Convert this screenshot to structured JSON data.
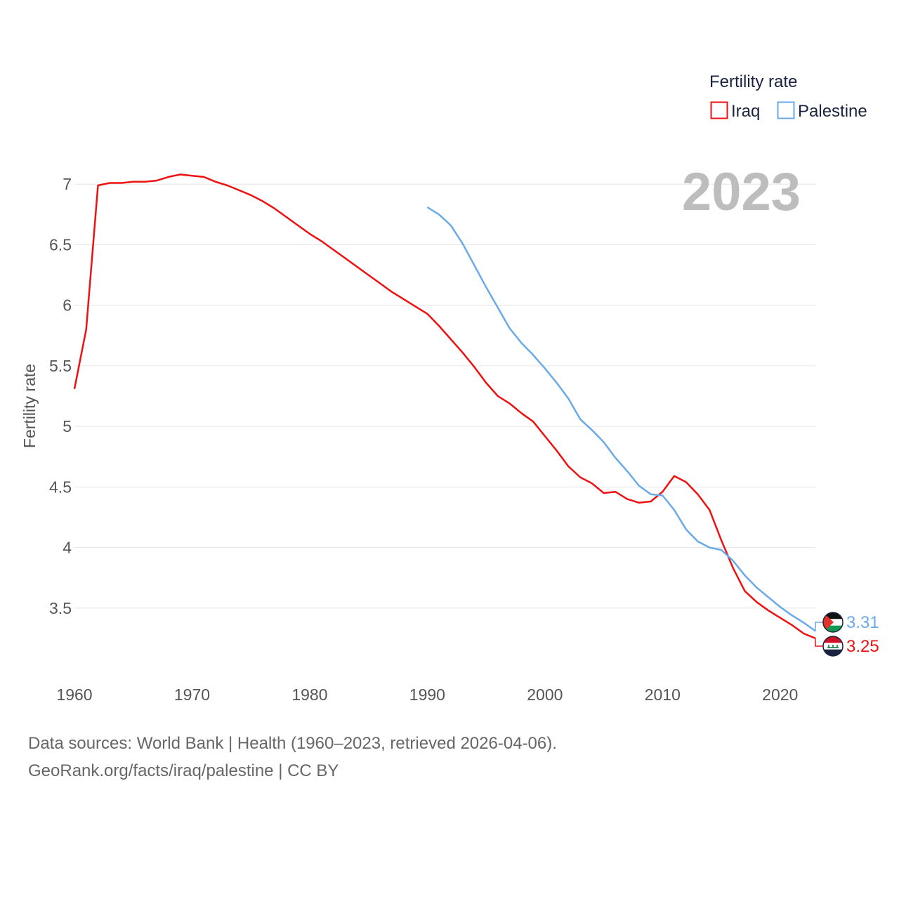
{
  "colors": {
    "iraq": "#ee1111",
    "palestine": "#6aaae8"
  },
  "footer": {
    "line1": "Data sources: World Bank | Health (1960–2023, retrieved 2026-04-06).",
    "line2": "GeoRank.org/facts/iraq/palestine | CC BY"
  },
  "chart_data": {
    "type": "line",
    "title": "",
    "ylabel": "Fertility rate",
    "xlabel": "",
    "year_label": "2023",
    "legend": {
      "title": "Fertility rate",
      "position": "top-right"
    },
    "xlim": [
      1960,
      2023
    ],
    "ylim": [
      3.0,
      7.1
    ],
    "x_ticks": [
      1960,
      1970,
      1980,
      1990,
      2000,
      2010,
      2020
    ],
    "y_ticks": [
      3.5,
      4,
      4.5,
      5,
      5.5,
      6,
      6.5,
      7
    ],
    "series": [
      {
        "key": "iraq",
        "name": "Iraq",
        "end_label": "3.25",
        "x": [
          1960,
          1961,
          1962,
          1963,
          1964,
          1965,
          1966,
          1967,
          1968,
          1969,
          1970,
          1971,
          1972,
          1973,
          1974,
          1975,
          1976,
          1977,
          1978,
          1979,
          1980,
          1981,
          1982,
          1983,
          1984,
          1985,
          1986,
          1987,
          1988,
          1989,
          1990,
          1991,
          1992,
          1993,
          1994,
          1995,
          1996,
          1997,
          1998,
          1999,
          2000,
          2001,
          2002,
          2003,
          2004,
          2005,
          2006,
          2007,
          2008,
          2009,
          2010,
          2011,
          2012,
          2013,
          2014,
          2015,
          2016,
          2017,
          2018,
          2019,
          2020,
          2021,
          2022,
          2023
        ],
        "values": [
          5.31,
          5.8,
          6.99,
          7.01,
          7.01,
          7.02,
          7.02,
          7.03,
          7.06,
          7.08,
          7.07,
          7.06,
          7.02,
          6.99,
          6.95,
          6.91,
          6.86,
          6.8,
          6.73,
          6.66,
          6.59,
          6.53,
          6.46,
          6.39,
          6.32,
          6.25,
          6.18,
          6.11,
          6.05,
          5.99,
          5.93,
          5.83,
          5.72,
          5.61,
          5.49,
          5.36,
          5.25,
          5.19,
          5.11,
          5.04,
          4.92,
          4.8,
          4.67,
          4.58,
          4.53,
          4.45,
          4.46,
          4.4,
          4.37,
          4.38,
          4.46,
          4.59,
          4.54,
          4.44,
          4.31,
          4.06,
          3.83,
          3.64,
          3.55,
          3.48,
          3.42,
          3.36,
          3.29,
          3.25
        ]
      },
      {
        "key": "palestine",
        "name": "Palestine",
        "end_label": "3.31",
        "x": [
          1990,
          1991,
          1992,
          1993,
          1994,
          1995,
          1996,
          1997,
          1998,
          1999,
          2000,
          2001,
          2002,
          2003,
          2004,
          2005,
          2006,
          2007,
          2008,
          2009,
          2010,
          2011,
          2012,
          2013,
          2014,
          2015,
          2016,
          2017,
          2018,
          2019,
          2020,
          2021,
          2022,
          2023
        ],
        "values": [
          6.81,
          6.75,
          6.66,
          6.51,
          6.33,
          6.15,
          5.98,
          5.81,
          5.69,
          5.59,
          5.48,
          5.36,
          5.23,
          5.06,
          4.97,
          4.87,
          4.74,
          4.63,
          4.51,
          4.44,
          4.43,
          4.31,
          4.15,
          4.05,
          4.0,
          3.98,
          3.89,
          3.77,
          3.67,
          3.59,
          3.51,
          3.44,
          3.38,
          3.31
        ]
      }
    ]
  }
}
